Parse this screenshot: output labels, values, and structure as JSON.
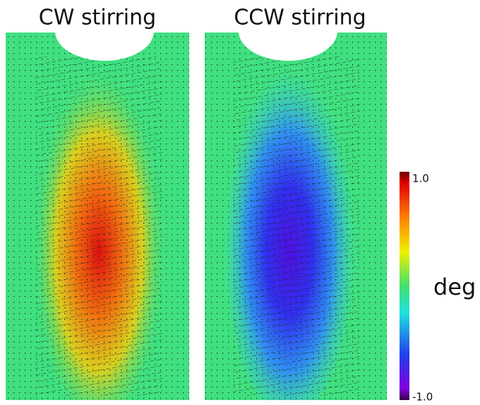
{
  "panels": [
    {
      "title": "CW stirring"
    },
    {
      "title": "CCW stirring"
    }
  ],
  "colorbar": {
    "max_label": "1.0",
    "min_label": "-1.0",
    "unit": "deg"
  }
}
